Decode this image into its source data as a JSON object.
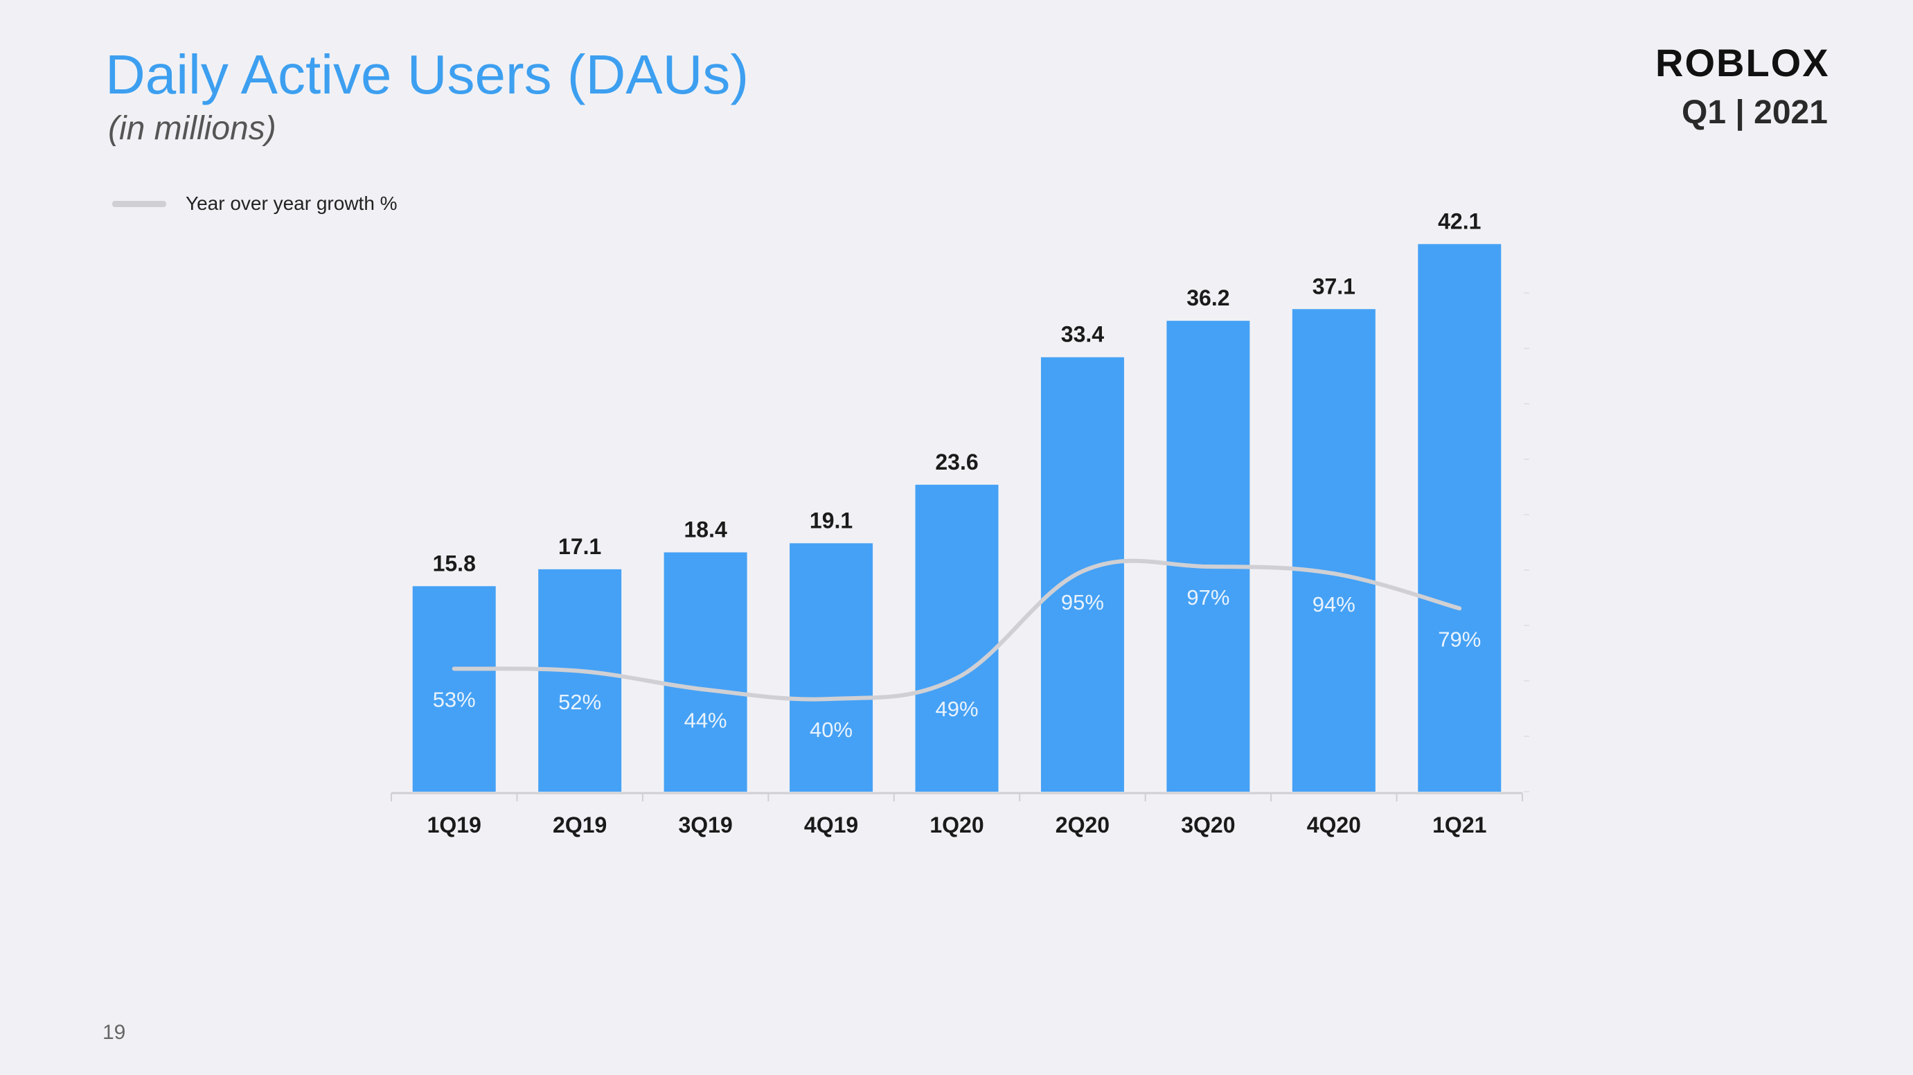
{
  "header": {
    "title": "Daily Active Users (DAUs)",
    "subtitle": "(in millions)",
    "brand": "ROBLOX",
    "period": "Q1 | 2021"
  },
  "footer": {
    "page_number": "19"
  },
  "colors": {
    "bar": "#45a1f5",
    "line": "#d0d0d4",
    "title": "#3d9ff0"
  },
  "chart_data": {
    "type": "bar",
    "title": "Daily Active Users (DAUs)",
    "subtitle": "(in millions)",
    "xlabel": "",
    "ylabel": "",
    "categories": [
      "1Q19",
      "2Q19",
      "3Q19",
      "4Q19",
      "1Q20",
      "2Q20",
      "3Q20",
      "4Q20",
      "1Q21"
    ],
    "series": [
      {
        "type": "bar",
        "values": [
          15.8,
          17.1,
          18.4,
          19.1,
          23.6,
          33.4,
          36.2,
          37.1,
          42.1
        ],
        "labels": [
          "15.8",
          "17.1",
          "18.4",
          "19.1",
          "23.6",
          "33.4",
          "36.2",
          "37.1",
          "42.1"
        ]
      },
      {
        "name": "Year over year growth %",
        "type": "line",
        "values": [
          53,
          52,
          44,
          40,
          49,
          95,
          97,
          94,
          79
        ],
        "labels": [
          "53%",
          "52%",
          "44%",
          "40%",
          "49%",
          "95%",
          "97%",
          "94%",
          "79%"
        ]
      }
    ],
    "ylim": [
      0,
      45
    ],
    "y2lim": [
      0,
      170
    ],
    "grid": false,
    "legend": "top-left"
  }
}
